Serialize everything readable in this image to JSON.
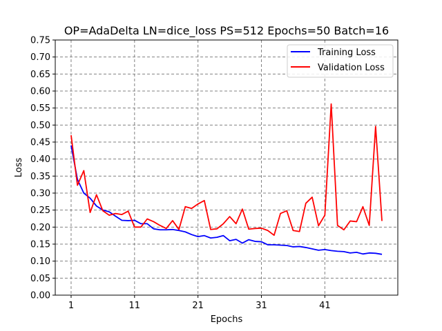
{
  "chart_data": {
    "type": "line",
    "title": "OP=AdaDelta LN=dice_loss PS=512 Epochs=50 Batch=16",
    "xlabel": "Epochs",
    "ylabel": "Loss",
    "xlim": [
      -1.5,
      52.5
    ],
    "ylim": [
      0,
      0.75
    ],
    "xticks": [
      1,
      11,
      21,
      31,
      41
    ],
    "xtick_labels": [
      "1",
      "11",
      "21",
      "31",
      "41"
    ],
    "yticks": [
      0,
      0.05,
      0.1,
      0.15,
      0.2,
      0.25,
      0.3,
      0.35,
      0.4,
      0.45,
      0.5,
      0.55,
      0.6,
      0.65,
      0.7,
      0.75
    ],
    "ytick_labels": [
      "0.00",
      "0.05",
      "0.10",
      "0.15",
      "0.20",
      "0.25",
      "0.30",
      "0.35",
      "0.40",
      "0.45",
      "0.50",
      "0.55",
      "0.60",
      "0.65",
      "0.70",
      "0.75"
    ],
    "grid": true,
    "legend_position": "top-right",
    "x": [
      1,
      2,
      3,
      4,
      5,
      6,
      7,
      8,
      9,
      10,
      11,
      12,
      13,
      14,
      15,
      16,
      17,
      18,
      19,
      20,
      21,
      22,
      23,
      24,
      25,
      26,
      27,
      28,
      29,
      30,
      31,
      32,
      33,
      34,
      35,
      36,
      37,
      38,
      39,
      40,
      41,
      42,
      43,
      44,
      45,
      46,
      47,
      48,
      49,
      50
    ],
    "series": [
      {
        "name": "Training Loss",
        "color": "#0000ff",
        "values": [
          0.44,
          0.34,
          0.3,
          0.285,
          0.262,
          0.25,
          0.245,
          0.232,
          0.22,
          0.219,
          0.22,
          0.21,
          0.21,
          0.195,
          0.192,
          0.192,
          0.193,
          0.19,
          0.186,
          0.178,
          0.172,
          0.175,
          0.168,
          0.17,
          0.175,
          0.16,
          0.164,
          0.153,
          0.163,
          0.158,
          0.157,
          0.148,
          0.148,
          0.147,
          0.146,
          0.142,
          0.143,
          0.14,
          0.136,
          0.132,
          0.134,
          0.131,
          0.129,
          0.128,
          0.124,
          0.126,
          0.121,
          0.124,
          0.123,
          0.12
        ]
      },
      {
        "name": "Validation Loss",
        "color": "#ff0000",
        "values": [
          0.47,
          0.323,
          0.366,
          0.243,
          0.295,
          0.248,
          0.235,
          0.24,
          0.237,
          0.247,
          0.2,
          0.2,
          0.224,
          0.216,
          0.205,
          0.196,
          0.219,
          0.193,
          0.26,
          0.255,
          0.268,
          0.278,
          0.193,
          0.195,
          0.21,
          0.231,
          0.21,
          0.253,
          0.194,
          0.196,
          0.197,
          0.19,
          0.176,
          0.24,
          0.248,
          0.19,
          0.187,
          0.27,
          0.288,
          0.204,
          0.235,
          0.562,
          0.205,
          0.192,
          0.218,
          0.216,
          0.26,
          0.205,
          0.496,
          0.218
        ]
      }
    ]
  }
}
